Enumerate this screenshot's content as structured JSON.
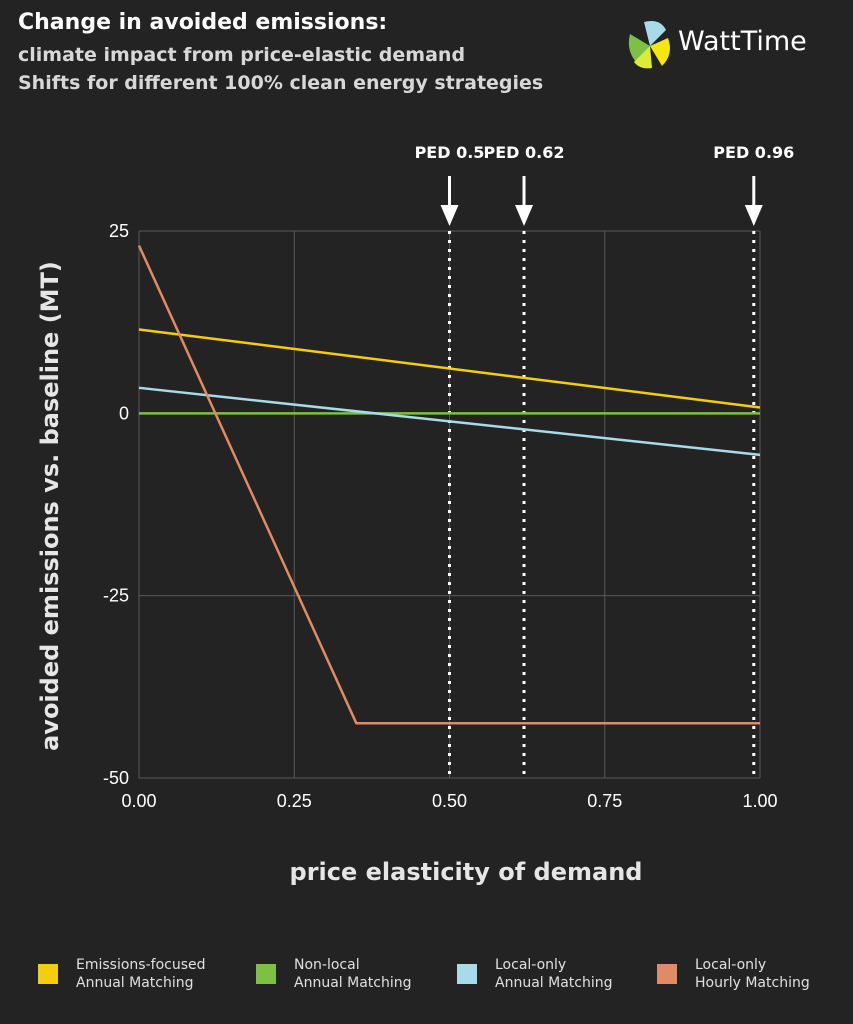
{
  "header": {
    "title": "Change in avoided emissions:",
    "subtitle_line1": "climate impact from price-elastic demand",
    "subtitle_line2": "Shifts for  different 100% clean energy strategies",
    "logo_text": "WattTime"
  },
  "colors": {
    "background": "#232323",
    "emissions_focused": "#f5cd0f",
    "non_local": "#7cc143",
    "local_only_annual": "#a8dbe8",
    "local_only_hourly": "#e08a66"
  },
  "chart_data": {
    "type": "line",
    "title": "",
    "xlabel": "price elasticity of demand",
    "ylabel": "avoided emissions vs. baseline (MT)",
    "xlim": [
      0,
      1
    ],
    "ylim": [
      -50,
      25
    ],
    "x_ticks": [
      "0.00",
      "0.25",
      "0.50",
      "0.75",
      "1.00"
    ],
    "y_ticks": [
      "25",
      "0",
      "-25",
      "-50"
    ],
    "grid": true,
    "legend_position": "bottom",
    "series": [
      {
        "name": "Emissions-focused Annual Matching",
        "color": "#f5cd0f",
        "x": [
          0,
          1
        ],
        "y": [
          11.5,
          0.8
        ]
      },
      {
        "name": "Non-local Annual Matching",
        "color": "#7cc143",
        "x": [
          0,
          1
        ],
        "y": [
          0,
          0
        ]
      },
      {
        "name": "Local-only Annual Matching",
        "color": "#a8dbe8",
        "x": [
          0,
          1
        ],
        "y": [
          3.5,
          -5.7
        ]
      },
      {
        "name": "Local-only Hourly Matching",
        "color": "#e08a66",
        "x": [
          0,
          0.35,
          1
        ],
        "y": [
          23,
          -42.5,
          -42.5
        ]
      }
    ],
    "annotations": [
      {
        "label": "PED 0.5",
        "x": 0.5
      },
      {
        "label": "PED 0.62",
        "x": 0.62
      },
      {
        "label": "PED 0.96",
        "x": 0.99
      }
    ]
  },
  "legend": [
    {
      "line1": "Emissions-focused",
      "line2": "Annual Matching",
      "color": "#f5cd0f"
    },
    {
      "line1": "Non-local",
      "line2": "Annual Matching",
      "color": "#7cc143"
    },
    {
      "line1": "Local-only",
      "line2": "Annual Matching",
      "color": "#a8dbe8"
    },
    {
      "line1": "Local-only",
      "line2": "Hourly Matching",
      "color": "#e08a66"
    }
  ]
}
